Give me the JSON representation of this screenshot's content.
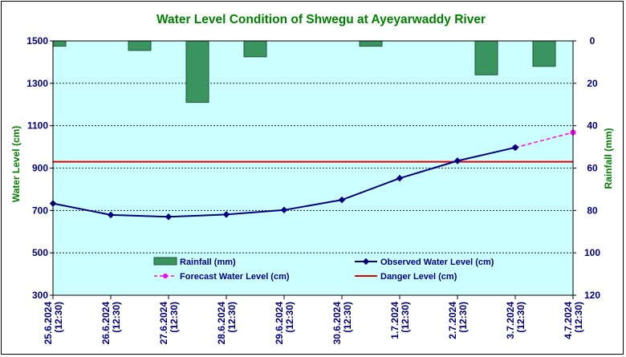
{
  "chart_data": {
    "type": "line",
    "title": "Water Level Condition of Shwegu at Ayeyarwaddy River",
    "ylabel": "Water Level (cm)",
    "y2label": "Rainfall (mm)",
    "x": [
      "25.6.2024 (12:30)",
      "26.6.2024 (12:30)",
      "27.6.2024 (12:30)",
      "28.6.2024 (12:30)",
      "29.6.2024 (12:30)",
      "30.6.2024 (12:30)",
      "1.7.2024 (12:30)",
      "2.7.2024 (12:30)",
      "3.7.2024 (12:30)",
      "4.7.2024 (12:30)"
    ],
    "x_labels": [
      {
        "date": "25.6.2024",
        "time": "(12:30)"
      },
      {
        "date": "26.6.2024",
        "time": "(12:30)"
      },
      {
        "date": "27.6.2024",
        "time": "(12:30)"
      },
      {
        "date": "28.6.2024",
        "time": "(12:30)"
      },
      {
        "date": "29.6.2024",
        "time": "(12:30)"
      },
      {
        "date": "30.6.2024",
        "time": "(12:30)"
      },
      {
        "date": "1.7.2024",
        "time": "(12:30)"
      },
      {
        "date": "2.7.2024",
        "time": "(12:30)"
      },
      {
        "date": "3.7.2024",
        "time": "(12:30)"
      },
      {
        "date": "4.7.2024",
        "time": "(12:30)"
      }
    ],
    "ylim": [
      300,
      1500
    ],
    "y_ticks": [
      300,
      500,
      700,
      900,
      1100,
      1300,
      1500
    ],
    "y2lim": [
      0,
      120
    ],
    "y2_inverted": true,
    "y2_ticks": [
      0,
      20,
      40,
      60,
      80,
      100,
      120
    ],
    "grid": "horizontal dashed",
    "legend_position": "bottom-center inside plot",
    "series": [
      {
        "name": "Rainfall (mm)",
        "kind": "bar",
        "axis": "right",
        "values": [
          2.5,
          4.5,
          29,
          7.5,
          null,
          2.5,
          null,
          16,
          12,
          null
        ],
        "color": "#3a9460"
      },
      {
        "name": "Observed Water Level (cm)",
        "kind": "line",
        "axis": "left",
        "values": [
          733,
          679,
          670,
          681,
          702,
          750,
          852,
          934,
          997,
          null
        ],
        "color": "#000080"
      },
      {
        "name": "Forecast Water Level (cm)",
        "kind": "dashed-line",
        "axis": "left",
        "values": [
          null,
          null,
          null,
          null,
          null,
          null,
          null,
          null,
          997,
          1068
        ],
        "color": "#ff00ff"
      },
      {
        "name": "Danger Level (cm)",
        "kind": "hline",
        "axis": "left",
        "value": 930,
        "color": "#e00000"
      }
    ],
    "colors": {
      "plot_bg": "#ccffff",
      "title": "#008000",
      "axis_label": "#008000",
      "tick_label": "#000080",
      "legend_text": "#000080"
    }
  }
}
